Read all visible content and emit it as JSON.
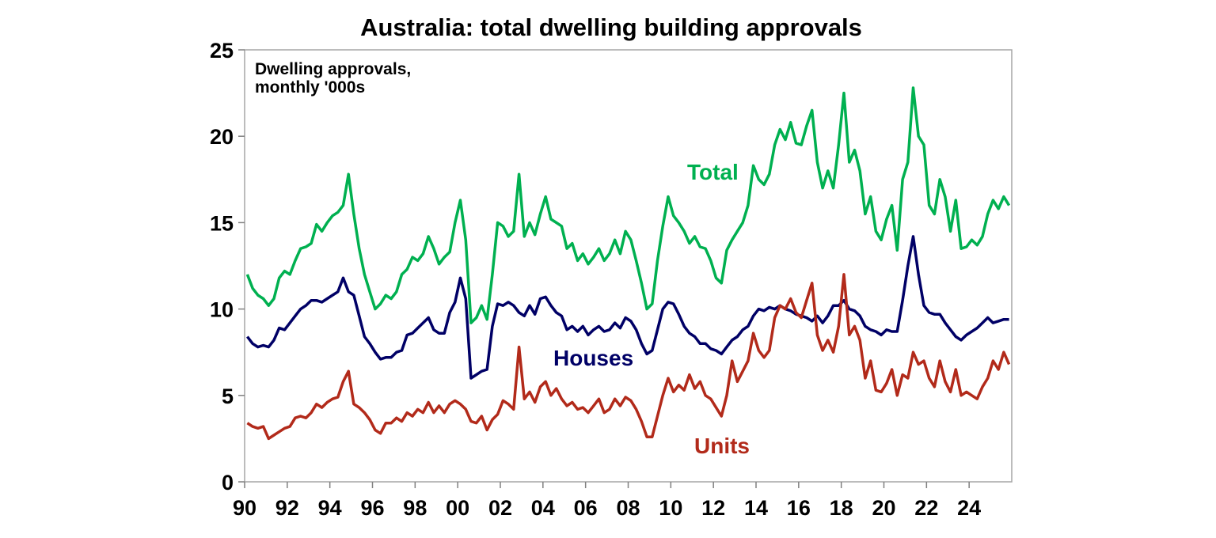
{
  "chart_data": {
    "type": "line",
    "title": "Australia: total dwelling building approvals",
    "annotation": [
      "Dwelling approvals,",
      "monthly '000s"
    ],
    "xlabel": "",
    "ylabel": "",
    "xlim": [
      1990,
      2026
    ],
    "ylim": [
      0,
      25
    ],
    "yticks": [
      0,
      5,
      10,
      15,
      20,
      25
    ],
    "xticks": [
      1990,
      1992,
      1994,
      1996,
      1998,
      2000,
      2002,
      2004,
      2006,
      2008,
      2010,
      2012,
      2014,
      2016,
      2018,
      2020,
      2022,
      2024
    ],
    "xtick_labels": [
      "90",
      "92",
      "94",
      "96",
      "98",
      "00",
      "02",
      "04",
      "06",
      "08",
      "10",
      "12",
      "14",
      "16",
      "18",
      "20",
      "22",
      "24"
    ],
    "grid": false,
    "legend": "inline labels",
    "period_start": "1990-Q1",
    "frequency": "quarterly",
    "series": [
      {
        "name": "Total",
        "color": "#00b050",
        "values": [
          12.0,
          11.2,
          10.8,
          10.6,
          10.2,
          10.6,
          11.8,
          12.2,
          12.0,
          12.8,
          13.5,
          13.6,
          13.8,
          14.9,
          14.5,
          15.0,
          15.4,
          15.6,
          16.0,
          17.8,
          15.5,
          13.5,
          12.0,
          11.0,
          10.0,
          10.3,
          10.8,
          10.6,
          11.0,
          12.0,
          12.3,
          13.0,
          12.8,
          13.2,
          14.2,
          13.5,
          12.6,
          13.0,
          13.3,
          15.0,
          16.3,
          14.0,
          9.2,
          9.5,
          10.2,
          9.4,
          12.0,
          15.0,
          14.8,
          14.2,
          14.5,
          17.8,
          14.2,
          15.0,
          14.3,
          15.5,
          16.5,
          15.2,
          15.0,
          14.8,
          13.5,
          13.8,
          12.8,
          13.2,
          12.6,
          13.0,
          13.5,
          12.8,
          13.2,
          14.0,
          13.2,
          14.5,
          14.0,
          12.8,
          11.5,
          10.0,
          10.3,
          12.8,
          14.8,
          16.5,
          15.4,
          15.0,
          14.5,
          13.8,
          14.2,
          13.6,
          13.5,
          12.8,
          11.8,
          11.5,
          13.4,
          14.0,
          14.5,
          15.0,
          16.0,
          18.3,
          17.5,
          17.2,
          17.8,
          19.5,
          20.4,
          19.8,
          20.8,
          19.6,
          19.5,
          20.6,
          21.5,
          18.5,
          17.0,
          18.0,
          17.0,
          19.5,
          22.5,
          18.5,
          19.2,
          18.0,
          15.5,
          16.5,
          14.5,
          14.0,
          15.2,
          16.0,
          13.4,
          17.5,
          18.5,
          22.8,
          20.0,
          19.5,
          16.0,
          15.5,
          17.5,
          16.5,
          14.5,
          16.3,
          13.5,
          13.6,
          14.0,
          13.7,
          14.2,
          15.5,
          16.3,
          15.8,
          16.5,
          16.0
        ]
      },
      {
        "name": "Houses",
        "color": "#000066",
        "values": [
          8.4,
          8.0,
          7.8,
          7.9,
          7.8,
          8.2,
          8.9,
          8.8,
          9.2,
          9.6,
          10.0,
          10.2,
          10.5,
          10.5,
          10.4,
          10.6,
          10.8,
          11.0,
          11.8,
          11.0,
          10.8,
          9.6,
          8.4,
          8.0,
          7.5,
          7.1,
          7.2,
          7.2,
          7.5,
          7.6,
          8.5,
          8.6,
          8.9,
          9.2,
          9.5,
          8.8,
          8.6,
          8.6,
          9.8,
          10.4,
          11.8,
          10.6,
          6.0,
          6.2,
          6.4,
          6.5,
          9.0,
          10.3,
          10.2,
          10.4,
          10.2,
          9.8,
          9.6,
          10.2,
          9.7,
          10.6,
          10.7,
          10.2,
          9.8,
          9.6,
          8.8,
          9.0,
          8.7,
          9.0,
          8.5,
          8.8,
          9.0,
          8.7,
          8.8,
          9.2,
          8.9,
          9.5,
          9.3,
          8.8,
          8.0,
          7.4,
          7.6,
          8.8,
          10.0,
          10.4,
          10.3,
          9.7,
          9.0,
          8.6,
          8.4,
          8.0,
          8.0,
          7.7,
          7.6,
          7.4,
          7.8,
          8.2,
          8.4,
          8.8,
          9.0,
          9.6,
          10.0,
          9.9,
          10.1,
          10.0,
          10.2,
          10.0,
          9.9,
          9.7,
          9.6,
          9.5,
          9.3,
          9.6,
          9.2,
          9.6,
          10.2,
          10.2,
          10.5,
          10.0,
          9.9,
          9.6,
          9.0,
          8.8,
          8.7,
          8.5,
          8.8,
          8.7,
          8.7,
          10.5,
          12.5,
          14.2,
          12.0,
          10.2,
          9.8,
          9.7,
          9.7,
          9.2,
          8.8,
          8.4,
          8.2,
          8.5,
          8.7,
          8.9,
          9.2,
          9.5,
          9.2,
          9.3,
          9.4,
          9.4
        ]
      },
      {
        "name": "Units",
        "color": "#b22a1a",
        "values": [
          3.4,
          3.2,
          3.1,
          3.2,
          2.5,
          2.7,
          2.9,
          3.1,
          3.2,
          3.7,
          3.8,
          3.7,
          4.0,
          4.5,
          4.3,
          4.6,
          4.8,
          4.9,
          5.8,
          6.4,
          4.5,
          4.3,
          4.0,
          3.6,
          3.0,
          2.8,
          3.4,
          3.4,
          3.7,
          3.5,
          4.0,
          3.8,
          4.2,
          4.0,
          4.6,
          4.0,
          4.4,
          4.0,
          4.5,
          4.7,
          4.5,
          4.2,
          3.5,
          3.4,
          3.8,
          3.0,
          3.6,
          3.9,
          4.7,
          4.5,
          4.2,
          7.8,
          4.8,
          5.2,
          4.6,
          5.5,
          5.8,
          5.0,
          5.4,
          4.8,
          4.4,
          4.6,
          4.2,
          4.3,
          4.0,
          4.4,
          4.8,
          4.0,
          4.2,
          4.8,
          4.4,
          4.9,
          4.7,
          4.2,
          3.5,
          2.6,
          2.6,
          3.8,
          5.0,
          6.0,
          5.2,
          5.6,
          5.3,
          6.2,
          5.4,
          5.8,
          5.0,
          4.8,
          4.3,
          3.8,
          5.0,
          7.0,
          5.8,
          6.4,
          7.0,
          8.6,
          7.6,
          7.2,
          7.6,
          9.5,
          10.2,
          10.0,
          10.6,
          9.8,
          9.5,
          10.5,
          11.5,
          8.5,
          7.6,
          8.2,
          7.5,
          9.0,
          12.0,
          8.5,
          9.0,
          8.2,
          6.0,
          7.0,
          5.3,
          5.2,
          5.7,
          6.5,
          5.0,
          6.2,
          6.0,
          7.5,
          6.8,
          7.0,
          6.0,
          5.5,
          7.0,
          5.8,
          5.2,
          6.5,
          5.0,
          5.2,
          5.0,
          4.8,
          5.5,
          6.0,
          7.0,
          6.5,
          7.5,
          6.8
        ]
      }
    ]
  }
}
